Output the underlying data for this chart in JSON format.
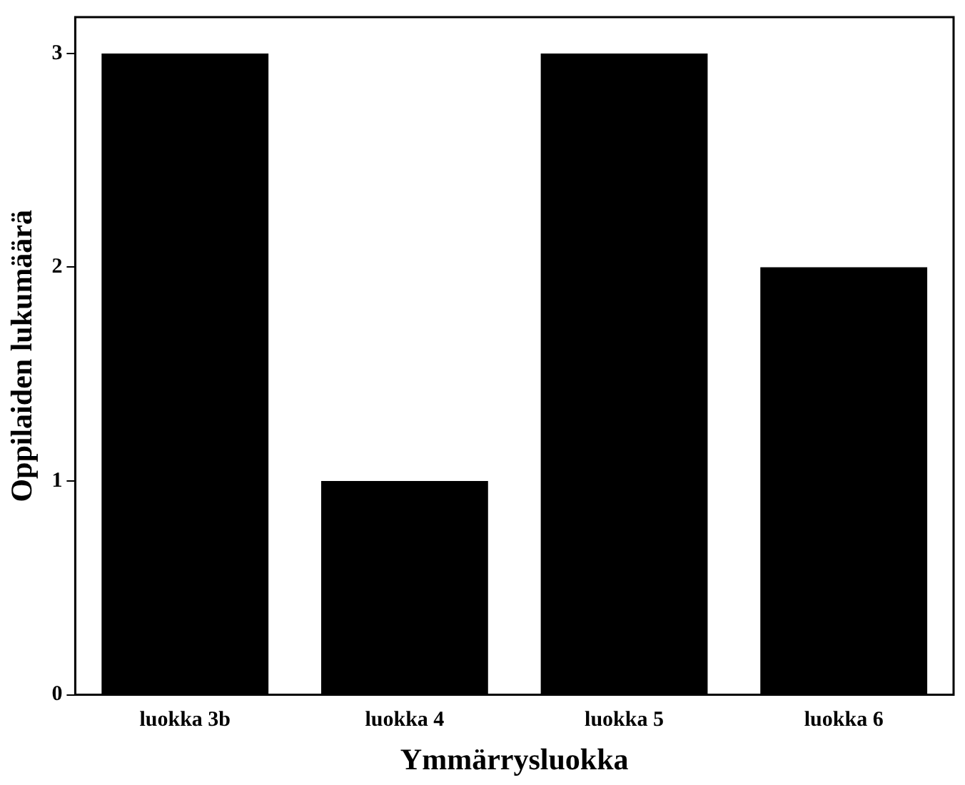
{
  "chart_data": {
    "type": "bar",
    "xlabel": "Ymmärrysluokka",
    "ylabel": "Oppilaiden lukumäärä",
    "categories": [
      "luokka 3b",
      "luokka 4",
      "luokka 5",
      "luokka 6"
    ],
    "values": [
      3,
      1,
      3,
      2
    ],
    "color": "#000000",
    "ylim": [
      0,
      3.17
    ],
    "yticks": [
      0,
      1,
      2,
      3
    ],
    "grid": false,
    "legend": false
  }
}
